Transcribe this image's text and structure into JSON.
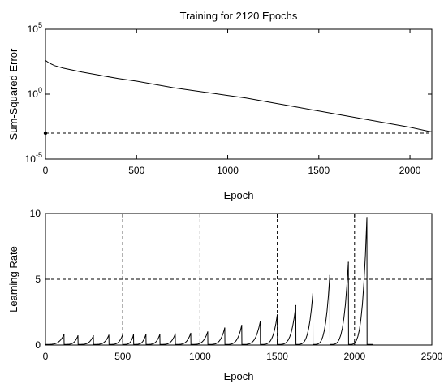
{
  "chart_data": [
    {
      "type": "line",
      "title": "Training for 2120 Epochs",
      "xlabel": "Epoch",
      "ylabel": "Sum-Squared Error",
      "yscale": "log",
      "xlim": [
        0,
        2120
      ],
      "ylim_log10": [
        -5,
        5
      ],
      "xticks": [
        "0",
        "500",
        "1000",
        "1500",
        "2000"
      ],
      "yticks": [
        {
          "base": "10",
          "exp": "5",
          "log10": 5
        },
        {
          "base": "10",
          "exp": "0",
          "log10": 0
        },
        {
          "base": "10",
          "exp": "-5",
          "log10": -5
        }
      ],
      "grid": false,
      "series": [
        {
          "style": "solid",
          "x": [
            0,
            20,
            50,
            100,
            200,
            300,
            400,
            500,
            600,
            700,
            800,
            900,
            1000,
            1100,
            1200,
            1300,
            1400,
            1500,
            1600,
            1700,
            1800,
            1900,
            2000,
            2100,
            2120
          ],
          "log10_y": [
            2.6,
            2.4,
            2.2,
            2.0,
            1.7,
            1.45,
            1.2,
            1.0,
            0.75,
            0.5,
            0.3,
            0.1,
            -0.1,
            -0.3,
            -0.55,
            -0.8,
            -1.05,
            -1.3,
            -1.55,
            -1.8,
            -2.05,
            -2.3,
            -2.55,
            -2.85,
            -2.9
          ]
        },
        {
          "style": "dashed",
          "x": [
            0,
            2120
          ],
          "log10_y": [
            -3,
            -3
          ]
        }
      ],
      "markers": [
        {
          "x": 0,
          "log10_y": -3
        }
      ]
    },
    {
      "type": "line",
      "title": "",
      "xlabel": "Epoch",
      "ylabel": "Learning Rate",
      "xlim": [
        0,
        2500
      ],
      "ylim": [
        0,
        10
      ],
      "xticks": [
        "0",
        "500",
        "1000",
        "1500",
        "2000",
        "2500"
      ],
      "yticks": [
        "0",
        "5",
        "10"
      ],
      "grid": false,
      "reference_lines": {
        "vertical": [
          500,
          1000,
          1500,
          2000
        ],
        "horizontal": [
          5
        ]
      },
      "peaks": [
        {
          "x": 120,
          "y": 0.8
        },
        {
          "x": 210,
          "y": 0.7
        },
        {
          "x": 310,
          "y": 0.7
        },
        {
          "x": 410,
          "y": 0.75
        },
        {
          "x": 500,
          "y": 0.8
        },
        {
          "x": 570,
          "y": 0.8
        },
        {
          "x": 650,
          "y": 0.8
        },
        {
          "x": 740,
          "y": 0.8
        },
        {
          "x": 840,
          "y": 0.85
        },
        {
          "x": 940,
          "y": 0.9
        },
        {
          "x": 1050,
          "y": 1.0
        },
        {
          "x": 1160,
          "y": 1.3
        },
        {
          "x": 1270,
          "y": 1.5
        },
        {
          "x": 1390,
          "y": 1.8
        },
        {
          "x": 1500,
          "y": 2.3
        },
        {
          "x": 1620,
          "y": 3.0
        },
        {
          "x": 1730,
          "y": 3.9
        },
        {
          "x": 1840,
          "y": 5.3
        },
        {
          "x": 1960,
          "y": 6.3
        },
        {
          "x": 2080,
          "y": 9.7
        }
      ],
      "end_x": 2120,
      "base_y": 0.05
    }
  ]
}
